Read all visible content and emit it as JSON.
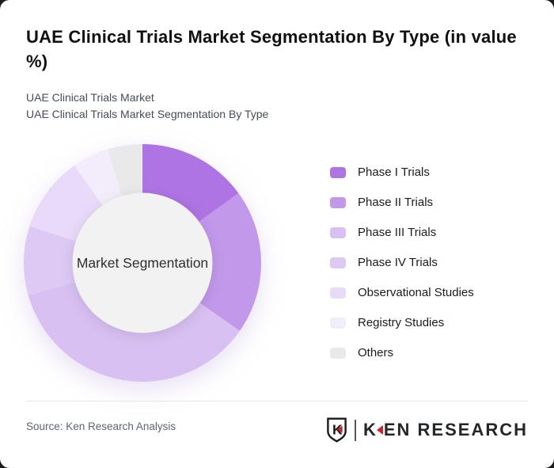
{
  "header": {
    "title": "UAE Clinical Trials Market Segmentation By Type (in value %)",
    "subtitle_line1": "UAE Clinical Trials Market",
    "subtitle_line2": "UAE Clinical Trials Market Segmentation By Type"
  },
  "chart_data": {
    "type": "pie",
    "subtype": "donut",
    "title": "UAE Clinical Trials Market Segmentation By Type (in value %)",
    "center_label": "Market Segmentation",
    "labels": [
      "Phase I Trials",
      "Phase II Trials",
      "Phase III Trials",
      "Phase IV Trials",
      "Observational Studies",
      "Registry Studies",
      "Others"
    ],
    "values": [
      15,
      19.7,
      35.9,
      9.4,
      10.3,
      5,
      4.7
    ],
    "unit": "value %",
    "colors": [
      "#ae74e4",
      "#c298eb",
      "#d8c0f2",
      "#ddc9f4",
      "#e8daf8",
      "#f2ecfb",
      "#e9e9e9"
    ],
    "start_angle_deg": 0,
    "direction": "clockwise",
    "inner_radius_ratio": 0.59,
    "legend_position": "right",
    "hole_color": "#f2f2f2"
  },
  "footer": {
    "source": "Source: Ken Research Analysis",
    "brand": {
      "shield_letter": "K",
      "wordmark_first": "K",
      "wordmark_rest": "EN RESEARCH",
      "red": "#c1272d",
      "dark": "#23272a"
    }
  }
}
